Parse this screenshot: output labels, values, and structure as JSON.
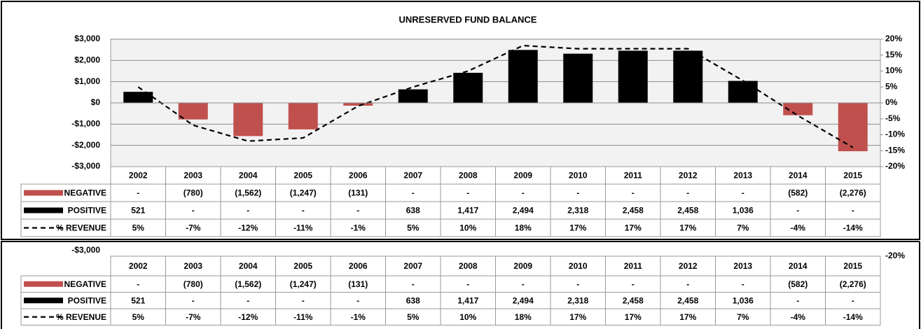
{
  "chart_data": {
    "type": "bar",
    "title": "UNRESERVED FUND BALANCE",
    "categories": [
      "2002",
      "2003",
      "2004",
      "2005",
      "2006",
      "2007",
      "2008",
      "2009",
      "2010",
      "2011",
      "2012",
      "2013",
      "2014",
      "2015"
    ],
    "series": [
      {
        "name": "NEGATIVE",
        "color": "#c0504d",
        "values": [
          0,
          -780,
          -1562,
          -1247,
          -131,
          0,
          0,
          0,
          0,
          0,
          0,
          0,
          -582,
          -2276
        ],
        "value_labels": [
          "-",
          "(780)",
          "(1,562)",
          "(1,247)",
          "(131)",
          "-",
          "-",
          "-",
          "-",
          "-",
          "-",
          "-",
          "(582)",
          "(2,276)"
        ]
      },
      {
        "name": "POSITIVE",
        "color": "#000000",
        "values": [
          521,
          0,
          0,
          0,
          0,
          638,
          1417,
          2494,
          2318,
          2458,
          2458,
          1036,
          0,
          0
        ],
        "value_labels": [
          "521",
          "-",
          "-",
          "-",
          "-",
          "638",
          "1,417",
          "2,494",
          "2,318",
          "2,458",
          "2,458",
          "1,036",
          "-",
          "-"
        ]
      },
      {
        "name": "% REVENUE",
        "color": "#000000",
        "type": "line",
        "axis": "y2",
        "dashed": true,
        "values": [
          5,
          -7,
          -12,
          -11,
          -1,
          5,
          10,
          18,
          17,
          17,
          17,
          7,
          -4,
          -14
        ],
        "value_labels": [
          "5%",
          "-7%",
          "-12%",
          "-11%",
          "-1%",
          "5%",
          "10%",
          "18%",
          "17%",
          "17%",
          "17%",
          "7%",
          "-4%",
          "-14%"
        ]
      }
    ],
    "ylim": [
      -3000,
      3000
    ],
    "yticks": [
      {
        "value": 3000,
        "label": "$3,000"
      },
      {
        "value": 2000,
        "label": "$2,000"
      },
      {
        "value": 1000,
        "label": "$1,000"
      },
      {
        "value": 0,
        "label": "$0"
      },
      {
        "value": -1000,
        "label": "-$1,000"
      },
      {
        "value": -2000,
        "label": "-$2,000"
      },
      {
        "value": -3000,
        "label": "-$3,000"
      }
    ],
    "y2lim": [
      -20,
      20
    ],
    "y2ticks": [
      {
        "value": 20,
        "label": "20%"
      },
      {
        "value": 15,
        "label": "15%"
      },
      {
        "value": 10,
        "label": "10%"
      },
      {
        "value": 5,
        "label": "5%"
      },
      {
        "value": 0,
        "label": "0%"
      },
      {
        "value": -5,
        "label": "-5%"
      },
      {
        "value": -10,
        "label": "-10%"
      },
      {
        "value": -15,
        "label": "-15%"
      },
      {
        "value": -20,
        "label": "-20%"
      }
    ],
    "grid": true,
    "data_table": true
  }
}
